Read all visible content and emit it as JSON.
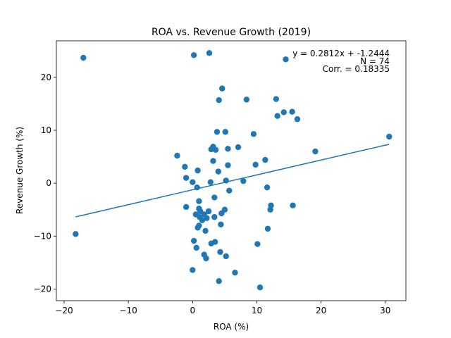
{
  "chart_data": {
    "type": "scatter",
    "title": "ROA vs. Revenue Growth (2019)",
    "xlabel": "ROA (%)",
    "ylabel": "Revenue Growth (%)",
    "xlim": [
      -21.2,
      33.2
    ],
    "ylim": [
      -22.2,
      26.9
    ],
    "xticks": [
      -20,
      -10,
      0,
      10,
      20,
      30
    ],
    "xtick_labels": [
      "−20",
      "−10",
      "0",
      "10",
      "20",
      "30"
    ],
    "yticks": [
      -20,
      -10,
      0,
      10,
      20
    ],
    "ytick_labels": [
      "−20",
      "−10",
      "0",
      "10",
      "20"
    ],
    "grid": false,
    "point_color": "#1f77b4",
    "line_color": "#1f77b4",
    "trendline": {
      "slope": 0.2812,
      "intercept": -1.2444,
      "x_start": -18.2,
      "x_end": 30.6
    },
    "annotations": {
      "equation": "y = 0.2812x + -1.2444",
      "n": "N = 74",
      "corr": "Corr. = 0.18335"
    },
    "points": [
      [
        -17,
        23.7
      ],
      [
        0.2,
        24.2
      ],
      [
        2.6,
        24.6
      ],
      [
        14.5,
        23.4
      ],
      [
        4.6,
        17.9
      ],
      [
        4.1,
        15.7
      ],
      [
        8.4,
        15.8
      ],
      [
        13,
        15.9
      ],
      [
        14.2,
        13.4
      ],
      [
        15.5,
        13.5
      ],
      [
        13.2,
        12.7
      ],
      [
        16.3,
        12.1
      ],
      [
        3.8,
        9.7
      ],
      [
        5.1,
        9.7
      ],
      [
        9.5,
        9.3
      ],
      [
        30.6,
        8.8
      ],
      [
        3.2,
        6.9
      ],
      [
        2.9,
        6.4
      ],
      [
        3.6,
        6.3
      ],
      [
        5.5,
        6.5
      ],
      [
        7.1,
        6.8
      ],
      [
        19.1,
        6.0
      ],
      [
        -2.4,
        5.2
      ],
      [
        3.2,
        4.2
      ],
      [
        11.3,
        4.4
      ],
      [
        -1.2,
        3.1
      ],
      [
        5.5,
        3.4
      ],
      [
        9.8,
        3.5
      ],
      [
        0.8,
        2.4
      ],
      [
        4.0,
        2.2
      ],
      [
        -1.0,
        1.0
      ],
      [
        0.0,
        0.2
      ],
      [
        2.8,
        0.2
      ],
      [
        5.2,
        0.5
      ],
      [
        7.9,
        0.4
      ],
      [
        0.7,
        -0.8
      ],
      [
        11.6,
        -0.8
      ],
      [
        5.7,
        -1.4
      ],
      [
        3.4,
        -2.7
      ],
      [
        -1.0,
        -4.5
      ],
      [
        1.0,
        -3.4
      ],
      [
        12.2,
        -4.2
      ],
      [
        15.6,
        -4.2
      ],
      [
        1.0,
        -4.8
      ],
      [
        12.1,
        -5.0
      ],
      [
        5.0,
        -5.0
      ],
      [
        1.2,
        -5.3
      ],
      [
        2.5,
        -5.3
      ],
      [
        4.5,
        -5.7
      ],
      [
        0.5,
        -5.9
      ],
      [
        1.8,
        -5.9
      ],
      [
        1.1,
        -6.4
      ],
      [
        2.2,
        -6.6
      ],
      [
        3.4,
        -6.4
      ],
      [
        4.4,
        -7.8
      ],
      [
        1.0,
        -8.0
      ],
      [
        0.8,
        -8.4
      ],
      [
        2.0,
        -9.0
      ],
      [
        11.7,
        -8.6
      ],
      [
        -18.2,
        -9.6
      ],
      [
        0.2,
        -10.9
      ],
      [
        3.5,
        -11.1
      ],
      [
        2.9,
        -11.4
      ],
      [
        10.1,
        -11.5
      ],
      [
        0.6,
        -12.2
      ],
      [
        1.8,
        -13.5
      ],
      [
        2.1,
        -14.2
      ],
      [
        5.2,
        -13.8
      ],
      [
        0.0,
        -16.4
      ],
      [
        6.6,
        -16.9
      ],
      [
        4.1,
        -18.5
      ],
      [
        10.5,
        -19.7
      ],
      [
        4.3,
        -13.0
      ],
      [
        1.5,
        -7.0
      ]
    ]
  }
}
